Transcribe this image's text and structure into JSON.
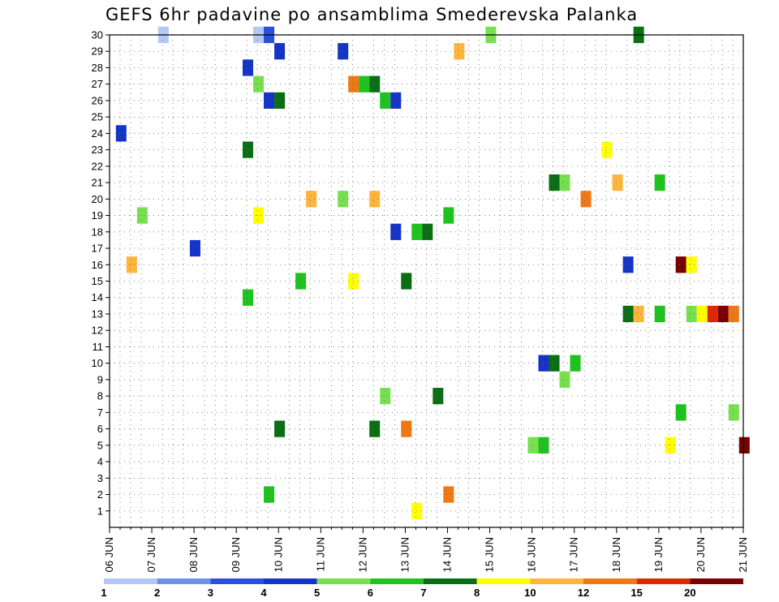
{
  "title": "GEFS 6hr padavine po ansamblima Smederevska Palanka",
  "chart_data": {
    "type": "heatmap",
    "title": "GEFS 6hr padavine po ansamblima Smederevska Palanka",
    "grid": true,
    "y_ticks": [
      1,
      2,
      3,
      4,
      5,
      6,
      7,
      8,
      9,
      10,
      11,
      12,
      13,
      14,
      15,
      16,
      17,
      18,
      19,
      20,
      21,
      22,
      23,
      24,
      25,
      26,
      27,
      28,
      29,
      30
    ],
    "ylim": [
      0,
      30
    ],
    "x_ticks": [
      "06 JUN",
      "07 JUN",
      "08 JUN",
      "09 JUN",
      "10 JUN",
      "11 JUN",
      "12 JUN",
      "13 JUN",
      "14 JUN",
      "15 JUN",
      "16 JUN",
      "17 JUN",
      "18 JUN",
      "19 JUN",
      "20 JUN",
      "21 JUN"
    ],
    "legend": {
      "position": "bottom",
      "labels": [
        "1",
        "2",
        "3",
        "4",
        "5",
        "6",
        "7",
        "8",
        "10",
        "12",
        "15",
        "20"
      ],
      "colors": [
        "#b4c8f5",
        "#6e90e6",
        "#2850dc",
        "#1434c8",
        "#78e050",
        "#1ec31e",
        "#0a6e14",
        "#ffff00",
        "#ffb43c",
        "#f07814",
        "#dc2800",
        "#780000"
      ]
    },
    "cells": [
      {
        "day": "07 JUN",
        "ens": 30,
        "c": 0
      },
      {
        "day": "09 JUN",
        "ens": 30,
        "c": 0
      },
      {
        "day": "09 JUN",
        "ens": 30,
        "c": 2
      },
      {
        "day": "09 JUN",
        "ens": 29,
        "c": 3
      },
      {
        "day": "09 JUN",
        "ens": 28,
        "c": 3
      },
      {
        "day": "09 JUN",
        "ens": 27,
        "c": 4
      },
      {
        "day": "09 JUN",
        "ens": 26,
        "c": 3
      },
      {
        "day": "09 JUN",
        "ens": 26,
        "c": 6
      },
      {
        "day": "09 JUN",
        "ens": 23,
        "c": 6
      },
      {
        "day": "11 JUN",
        "ens": 29,
        "c": 3
      },
      {
        "day": "11 JUN",
        "ens": 27,
        "c": 9
      },
      {
        "day": "11 JUN",
        "ens": 27,
        "c": 5
      },
      {
        "day": "12 JUN",
        "ens": 27,
        "c": 6
      },
      {
        "day": "12 JUN",
        "ens": 26,
        "c": 5
      },
      {
        "day": "12 JUN",
        "ens": 26,
        "c": 3
      },
      {
        "day": "14 JUN",
        "ens": 30,
        "c": 4
      },
      {
        "day": "14 JUN",
        "ens": 29,
        "c": 8
      },
      {
        "day": "16 JUN",
        "ens": 21,
        "c": 6
      },
      {
        "day": "16 JUN",
        "ens": 21,
        "c": 4
      },
      {
        "day": "17 JUN",
        "ens": 21,
        "c": 8
      },
      {
        "day": "17 JUN",
        "ens": 20,
        "c": 9
      },
      {
        "day": "18 JUN",
        "ens": 30,
        "c": 6
      },
      {
        "day": "17 JUN",
        "ens": 23,
        "c": 7
      },
      {
        "day": "18 JUN",
        "ens": 21,
        "c": 5
      },
      {
        "day": "18 JUN",
        "ens": 16,
        "c": 3
      },
      {
        "day": "19 JUN",
        "ens": 16,
        "c": 11
      },
      {
        "day": "19 JUN",
        "ens": 16,
        "c": 7
      },
      {
        "day": "18 JUN",
        "ens": 13,
        "c": 5
      },
      {
        "day": "18 JUN",
        "ens": 13,
        "c": 6
      },
      {
        "day": "18 JUN",
        "ens": 13,
        "c": 8
      },
      {
        "day": "19 JUN",
        "ens": 13,
        "c": 4
      },
      {
        "day": "19 JUN",
        "ens": 13,
        "c": 7
      },
      {
        "day": "20 JUN",
        "ens": 13,
        "c": 10
      },
      {
        "day": "20 JUN",
        "ens": 13,
        "c": 11
      },
      {
        "day": "20 JUN",
        "ens": 13,
        "c": 9
      },
      {
        "day": "20 JUN",
        "ens": 5,
        "c": 11
      },
      {
        "day": "19 JUN",
        "ens": 5,
        "c": 7
      },
      {
        "day": "10 JUN",
        "ens": 15,
        "c": 5
      },
      {
        "day": "11 JUN",
        "ens": 15,
        "c": 7
      },
      {
        "day": "12 JUN",
        "ens": 15,
        "c": 6
      },
      {
        "day": "13 JUN",
        "ens": 18,
        "c": 5
      },
      {
        "day": "13 JUN",
        "ens": 18,
        "c": 6
      },
      {
        "day": "12 JUN",
        "ens": 18,
        "c": 3
      },
      {
        "day": "13 JUN",
        "ens": 19,
        "c": 5
      },
      {
        "day": "12 JUN",
        "ens": 20,
        "c": 8
      },
      {
        "day": "11 JUN",
        "ens": 20,
        "c": 4
      },
      {
        "day": "10 JUN",
        "ens": 20,
        "c": 8
      },
      {
        "day": "12 JUN",
        "ens": 6,
        "c": 9
      },
      {
        "day": "12 JUN",
        "ens": 6,
        "c": 6
      },
      {
        "day": "12 JUN",
        "ens": 8,
        "c": 4
      },
      {
        "day": "13 JUN",
        "ens": 8,
        "c": 6
      },
      {
        "day": "13 JUN",
        "ens": 2,
        "c": 9
      },
      {
        "day": "13 JUN",
        "ens": 1,
        "c": 7
      },
      {
        "day": "09 JUN",
        "ens": 19,
        "c": 7
      },
      {
        "day": "09 JUN",
        "ens": 2,
        "c": 5
      },
      {
        "day": "09 JUN",
        "ens": 6,
        "c": 6
      },
      {
        "day": "09 JUN",
        "ens": 14,
        "c": 5
      },
      {
        "day": "06 JUN",
        "ens": 16,
        "c": 8
      },
      {
        "day": "06 JUN",
        "ens": 19,
        "c": 4
      },
      {
        "day": "16 JUN",
        "ens": 10,
        "c": 5
      },
      {
        "day": "16 JUN",
        "ens": 10,
        "c": 3
      },
      {
        "day": "16 JUN",
        "ens": 10,
        "c": 6
      },
      {
        "day": "16 JUN",
        "ens": 9,
        "c": 4
      },
      {
        "day": "15 JUN",
        "ens": 5,
        "c": 4
      },
      {
        "day": "16 JUN",
        "ens": 5,
        "c": 5
      },
      {
        "day": "19 JUN",
        "ens": 7,
        "c": 5
      },
      {
        "day": "20 JUN",
        "ens": 7,
        "c": 4
      },
      {
        "day": "07 JUN",
        "ens": 17,
        "c": 3
      },
      {
        "day": "06 JUN",
        "ens": 24,
        "c": 3
      }
    ]
  }
}
